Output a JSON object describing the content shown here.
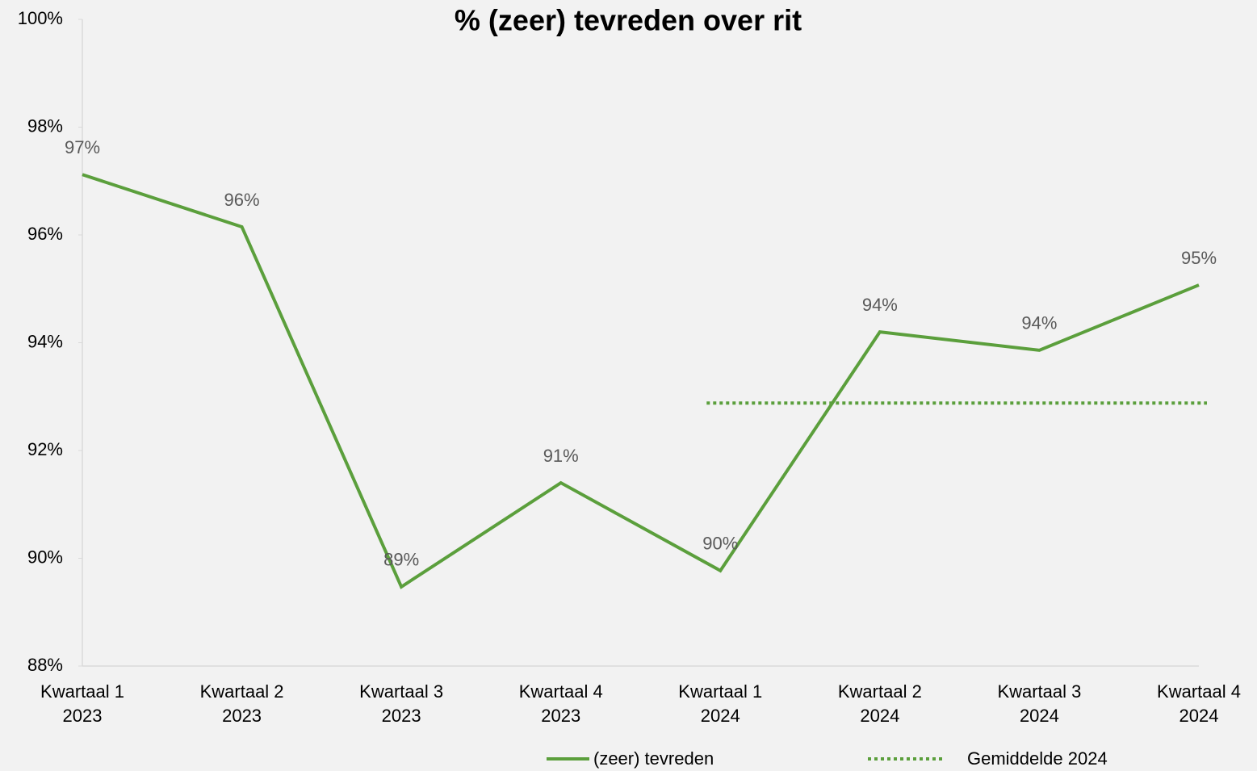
{
  "chart_data": {
    "type": "line",
    "title": "% (zeer) tevreden over rit",
    "categories": [
      [
        "Kwartaal 1",
        "2023"
      ],
      [
        "Kwartaal 2",
        "2023"
      ],
      [
        "Kwartaal 3",
        "2023"
      ],
      [
        "Kwartaal 4",
        "2023"
      ],
      [
        "Kwartaal 1",
        "2024"
      ],
      [
        "Kwartaal 2",
        "2024"
      ],
      [
        "Kwartaal 3",
        "2024"
      ],
      [
        "Kwartaal 4",
        "2024"
      ]
    ],
    "series": [
      {
        "name": "(zeer) tevreden",
        "color": "#5b9f3c",
        "style": "solid",
        "values": [
          97.12,
          96.15,
          89.47,
          91.4,
          89.77,
          94.2,
          93.86,
          95.07
        ],
        "value_labels": [
          "97%",
          "96%",
          "89%",
          "91%",
          "90%",
          "94%",
          "94%",
          "95%"
        ]
      },
      {
        "name": "Gemiddelde 2024",
        "color": "#5b9f3c",
        "style": "dotted",
        "values": [
          null,
          null,
          null,
          null,
          92.88,
          92.88,
          92.88,
          92.88
        ]
      }
    ],
    "ylim": [
      88,
      100
    ],
    "yticks": [
      {
        "value": 88,
        "label": "88%"
      },
      {
        "value": 90,
        "label": "90%"
      },
      {
        "value": 92,
        "label": "92%"
      },
      {
        "value": 94,
        "label": "94%"
      },
      {
        "value": 96,
        "label": "96%"
      },
      {
        "value": 98,
        "label": "98%"
      },
      {
        "value": 100,
        "label": "100%"
      }
    ],
    "grid": false,
    "legend": "bottom"
  }
}
